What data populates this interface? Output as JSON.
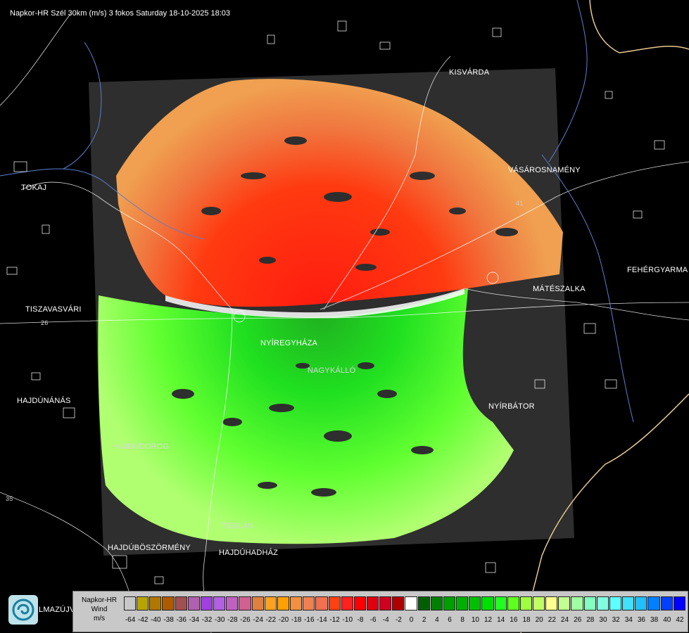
{
  "title": "Napkor-HR Szél 30km (m/s) 3 fokos Saturday 18-10-2025 18:03",
  "cities": [
    {
      "id": "kisvarda",
      "name": "KISVÁRDA"
    },
    {
      "id": "vasarosnameny",
      "name": "VÁSÁROSNAMÉNY"
    },
    {
      "id": "tokaj",
      "name": "TOKAJ"
    },
    {
      "id": "fehergyarmat",
      "name": "FEHÉRGYARMA"
    },
    {
      "id": "mateszalka",
      "name": "MÁTÉSZALKA"
    },
    {
      "id": "tiszavasvari",
      "name": "TISZAVASVÁRI"
    },
    {
      "id": "nyiregyhaza",
      "name": "NYÍREGYHÁZA"
    },
    {
      "id": "nagykallo",
      "name": "NAGYKÁLLÓ"
    },
    {
      "id": "hajdunanas",
      "name": "HAJDÚNÁNÁS"
    },
    {
      "id": "nyirbator",
      "name": "NYÍRBÁTOR"
    },
    {
      "id": "hajdudorog",
      "name": "HAJDÚDOROG"
    },
    {
      "id": "teglas",
      "name": "TÉGLÁS"
    },
    {
      "id": "hajduboszormeny",
      "name": "HAJDÚBÖSZÖRMÉNY"
    },
    {
      "id": "hajduhadhaz",
      "name": "HAJDÚHADHÁZ"
    },
    {
      "id": "balmazujvaros",
      "name": "LMAZÚJVÁR"
    }
  ],
  "road_numbers": [
    "26",
    "35",
    "41"
  ],
  "legend": {
    "title_lines": [
      "Napkor-HR",
      "Wind",
      "m/s"
    ],
    "colors": [
      "#c8c8c8",
      "#b8a400",
      "#b07800",
      "#b05a00",
      "#a05050",
      "#b060b0",
      "#a040e0",
      "#b060e0",
      "#c060c0",
      "#d06090",
      "#e08040",
      "#ffa020",
      "#ffa000",
      "#f09040",
      "#f08050",
      "#f07050",
      "#ff4010",
      "#ff2020",
      "#ff0000",
      "#e00010",
      "#d00020",
      "#b00000",
      "#ffffff",
      "#006000",
      "#008000",
      "#00a000",
      "#00b000",
      "#00c000",
      "#00e000",
      "#20ff20",
      "#60ff20",
      "#a0ff40",
      "#c0ff60",
      "#ffff90",
      "#c0ff90",
      "#a0ffa0",
      "#80ffc0",
      "#80ffe0",
      "#60ffff",
      "#40e0ff",
      "#20c0ff",
      "#0080ff",
      "#0040ff",
      "#0000ff"
    ],
    "ticks": [
      "-64",
      "-42",
      "-40",
      "-38",
      "-36",
      "-34",
      "-32",
      "-30",
      "-28",
      "-26",
      "-24",
      "-22",
      "-20",
      "-18",
      "-16",
      "-14",
      "-12",
      "-10",
      "-8",
      "-6",
      "-4",
      "-2",
      "0",
      "2",
      "4",
      "6",
      "8",
      "10",
      "12",
      "14",
      "16",
      "18",
      "20",
      "22",
      "24",
      "26",
      "28",
      "30",
      "32",
      "34",
      "36",
      "38",
      "40",
      "42"
    ]
  },
  "colors": {
    "background": "#000000",
    "radar_area": "#2e2e2e",
    "border": "#e8c890",
    "river": "#5b7fd0"
  }
}
